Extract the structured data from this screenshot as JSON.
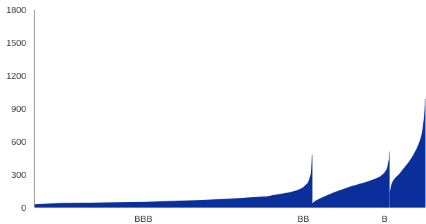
{
  "chart_data": {
    "type": "area",
    "title": "",
    "xlabel": "",
    "ylabel": "",
    "ylim": [
      0,
      1800
    ],
    "yticks": [
      0,
      300,
      600,
      900,
      1200,
      1500,
      1800
    ],
    "ytick_labels": [
      "0",
      "300",
      "600",
      "900",
      "1200",
      "1500",
      "1800"
    ],
    "grid": false,
    "color": "#0a2f9a",
    "categories": [
      "BBB",
      "BB",
      "B"
    ],
    "segments": [
      {
        "name": "BBB",
        "points": [
          [
            0,
            28
          ],
          [
            10,
            40
          ],
          [
            20,
            42
          ],
          [
            30,
            46
          ],
          [
            40,
            50
          ],
          [
            50,
            58
          ],
          [
            60,
            66
          ],
          [
            70,
            78
          ],
          [
            78,
            90
          ],
          [
            84,
            100
          ],
          [
            88,
            118
          ],
          [
            92,
            135
          ],
          [
            95,
            155
          ],
          [
            97,
            178
          ],
          [
            98,
            200
          ],
          [
            99,
            225
          ],
          [
            100,
            300
          ],
          [
            100.5,
            480
          ]
        ]
      },
      {
        "name": "BB",
        "points": [
          [
            0,
            30
          ],
          [
            5,
            60
          ],
          [
            12,
            85
          ],
          [
            20,
            110
          ],
          [
            30,
            140
          ],
          [
            40,
            165
          ],
          [
            50,
            190
          ],
          [
            60,
            210
          ],
          [
            70,
            230
          ],
          [
            80,
            255
          ],
          [
            88,
            280
          ],
          [
            93,
            310
          ],
          [
            96,
            340
          ],
          [
            98,
            380
          ],
          [
            99.5,
            440
          ],
          [
            100,
            510
          ]
        ]
      },
      {
        "name": "B",
        "points": [
          [
            0,
            140
          ],
          [
            3,
            200
          ],
          [
            8,
            240
          ],
          [
            15,
            270
          ],
          [
            25,
            300
          ],
          [
            35,
            340
          ],
          [
            45,
            380
          ],
          [
            55,
            420
          ],
          [
            65,
            470
          ],
          [
            75,
            530
          ],
          [
            83,
            590
          ],
          [
            89,
            650
          ],
          [
            93,
            720
          ],
          [
            96,
            800
          ],
          [
            98,
            880
          ],
          [
            99.5,
            940
          ],
          [
            100,
            990
          ]
        ]
      }
    ]
  }
}
